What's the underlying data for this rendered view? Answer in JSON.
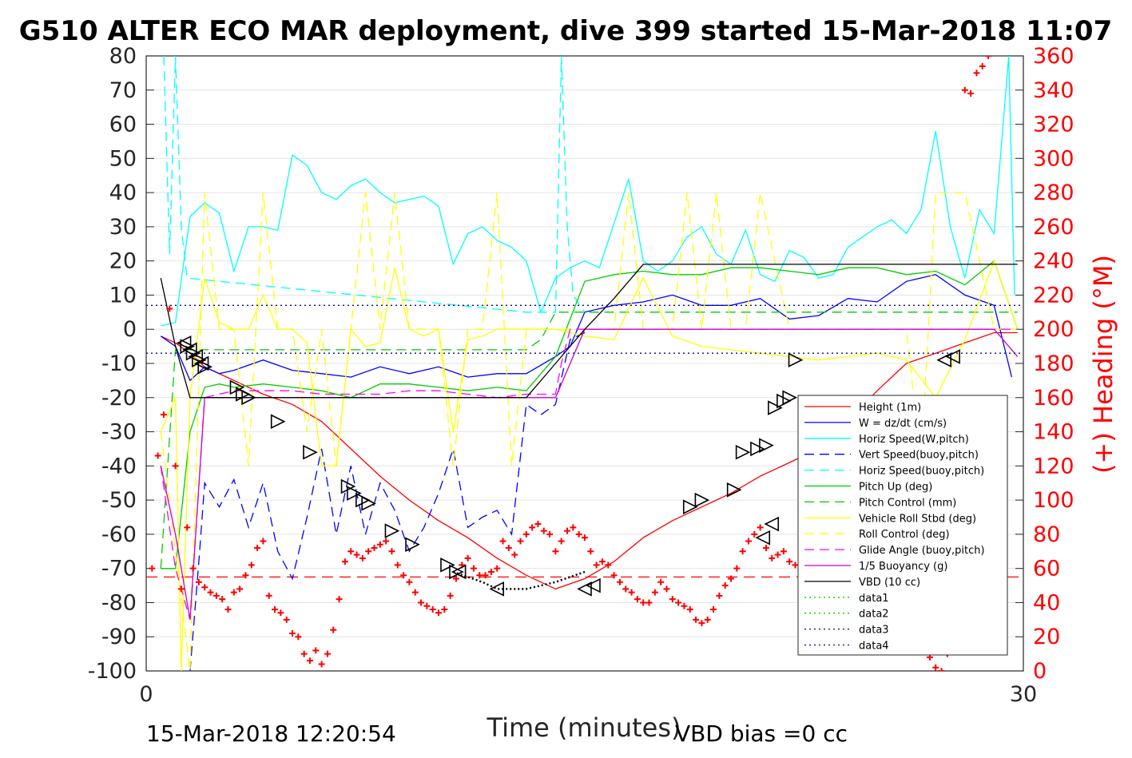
{
  "chart_data": {
    "type": "line",
    "title": "G510 ALTER ECO MAR deployment, dive 399 started 15-Mar-2018 11:07",
    "xlabel": "Time (minutes)",
    "ylabel_right": "(+) Heading (°M)",
    "xlim": [
      0,
      30
    ],
    "ylim_left": [
      -100,
      80
    ],
    "ylim_right": [
      0,
      360
    ],
    "xticks": [
      0,
      30
    ],
    "yticks_left": [
      80,
      70,
      60,
      50,
      40,
      30,
      20,
      10,
      0,
      -10,
      -20,
      -30,
      -40,
      -50,
      -60,
      -70,
      -80,
      -90,
      -100
    ],
    "yticks_right": [
      360,
      340,
      320,
      300,
      280,
      260,
      240,
      220,
      200,
      180,
      160,
      140,
      120,
      100,
      80,
      60,
      40,
      20,
      0
    ],
    "grid": true,
    "legend_position": "lower-right",
    "footer_left": "15-Mar-2018 12:20:54",
    "footer_right": "VBD bias =0 cc",
    "series": [
      {
        "name": "Height (1m)",
        "color": "#ff0000",
        "style": "solid",
        "x": [
          0.5,
          1.0,
          1.5,
          2.0,
          3.0,
          3.5,
          4.0,
          5.0,
          6.0,
          7.0,
          8.0,
          9.0,
          10.0,
          11.0,
          12.0,
          13.0,
          14.0,
          15.0,
          16.0,
          17.0,
          18.0,
          19.0,
          20.0,
          21.0,
          22.0,
          23.0,
          24.0,
          25.0,
          26.0,
          27.0,
          28.0,
          29.0,
          29.8
        ],
        "y": [
          -2,
          -4,
          -7,
          -11,
          -15,
          -17,
          -19,
          -22,
          -27,
          -35,
          -43,
          -50,
          -56,
          -61,
          -67,
          -72,
          -76,
          -73,
          -68,
          -61,
          -56,
          -52,
          -48,
          -43,
          -39,
          -35,
          -27,
          -18,
          -10,
          -7,
          -4,
          -1,
          -1
        ]
      },
      {
        "name": "W = dz/dt (cm/s)",
        "color": "#0000ff",
        "style": "solid",
        "x": [
          0.5,
          1.0,
          1.5,
          2.0,
          2.5,
          3.0,
          4.0,
          5.0,
          6.0,
          7.0,
          8.0,
          9.0,
          10.0,
          11.0,
          12.0,
          13.0,
          14.0,
          14.5,
          15.0,
          16.0,
          17.0,
          18.0,
          19.0,
          20.0,
          21.0,
          22.0,
          23.0,
          24.0,
          25.0,
          26.0,
          27.0,
          28.0,
          29.0,
          29.6
        ],
        "y": [
          -2,
          -5,
          -15,
          -11,
          -13,
          -12,
          -9,
          -12,
          -13,
          -14,
          -11,
          -13,
          -11,
          -14,
          -13,
          -13,
          -8,
          -5,
          5,
          7,
          8,
          10,
          7,
          7,
          9,
          3,
          4,
          9,
          8,
          14,
          16,
          10,
          7,
          -14
        ]
      },
      {
        "name": "Horiz Speed(W,pitch)",
        "color": "#00ffff",
        "style": "solid",
        "x": [
          0.5,
          1.0,
          1.5,
          2.0,
          2.5,
          3.0,
          3.5,
          4.0,
          4.5,
          5.0,
          5.5,
          6.0,
          6.5,
          7.0,
          7.5,
          8.0,
          8.5,
          9.0,
          9.5,
          10.0,
          10.5,
          11.0,
          11.5,
          12.0,
          12.5,
          13.0,
          13.5,
          14.0,
          14.5,
          15.0,
          15.5,
          16.0,
          16.5,
          17.0,
          17.5,
          18.0,
          18.5,
          19.0,
          19.5,
          20.0,
          20.5,
          21.0,
          21.5,
          22.0,
          22.5,
          23.0,
          23.5,
          24.0,
          24.5,
          25.0,
          25.5,
          26.0,
          26.5,
          27.0,
          27.5,
          28.0,
          28.5,
          29.0,
          29.5,
          29.7
        ],
        "y": [
          1,
          2,
          33,
          37,
          34,
          17,
          30,
          30,
          29,
          51,
          48,
          40,
          38,
          42,
          44,
          40,
          37,
          38,
          39,
          36,
          19,
          28,
          30,
          26,
          24,
          20,
          5,
          15,
          18,
          20,
          18,
          31,
          44,
          20,
          17,
          20,
          27,
          30,
          22,
          19,
          29,
          16,
          14,
          23,
          21,
          15,
          16,
          24,
          27,
          30,
          32,
          28,
          35,
          58,
          30,
          15,
          35,
          28,
          80,
          10
        ]
      },
      {
        "name": "Vert Speed(buoy,pitch)",
        "color": "#0000ff",
        "style": "dashed",
        "x": [
          1.5,
          1.8,
          2.0,
          2.5,
          3.0,
          3.5,
          4.0,
          4.5,
          5.0,
          5.5,
          6.0,
          6.5,
          7.0,
          7.5,
          8.0,
          8.5,
          9.0,
          9.5,
          10.0,
          10.5,
          11.0,
          11.5,
          12.0,
          12.5,
          13.0,
          13.5,
          14.0,
          14.5,
          15.0
        ],
        "y": [
          -100,
          -68,
          -45,
          -52,
          -44,
          -58,
          -45,
          -65,
          -73,
          -55,
          -35,
          -60,
          -40,
          -60,
          -45,
          -53,
          -65,
          -58,
          -48,
          -35,
          -58,
          -55,
          -53,
          -60,
          -22,
          -25,
          -22,
          -3,
          -1
        ]
      },
      {
        "name": "Horiz Speed(buoy,pitch)",
        "color": "#00ffff",
        "style": "dashed",
        "x": [
          0.6,
          0.8,
          1.0,
          1.2,
          1.4,
          13.0,
          14.0,
          14.2,
          14.4,
          14.6,
          15.0
        ],
        "y": [
          80,
          22,
          80,
          30,
          15,
          5,
          5,
          80,
          30,
          10,
          5
        ]
      },
      {
        "name": "Pitch Up (deg)",
        "color": "#00cc00",
        "style": "solid",
        "x": [
          0.5,
          1.0,
          1.5,
          2.0,
          2.5,
          3.0,
          4.0,
          5.0,
          6.0,
          7.0,
          8.0,
          9.0,
          10.0,
          11.0,
          12.0,
          13.0,
          14.0,
          15.0,
          16.0,
          17.0,
          18.0,
          19.0,
          20.0,
          21.0,
          22.0,
          23.0,
          24.0,
          25.0,
          26.0,
          27.0,
          28.0,
          29.0,
          29.8
        ],
        "y": [
          -70,
          -70,
          -30,
          -17,
          -16,
          -17,
          -16,
          -17,
          -18,
          -20,
          -16,
          -16,
          -17,
          -18,
          -17,
          -18,
          -8,
          14,
          16,
          17,
          16,
          16,
          18,
          18,
          17,
          16,
          18,
          18,
          16,
          17,
          13,
          20,
          0
        ]
      },
      {
        "name": "Pitch Control (mm)",
        "color": "#00cc00",
        "style": "dashed",
        "x": [
          0.5,
          1.0,
          2.0,
          13.0,
          13.5,
          14.0,
          29.8
        ],
        "y": [
          -70,
          -6,
          -6,
          -6,
          -3,
          5,
          5
        ]
      },
      {
        "name": "Vehicle Roll Stbd (deg)",
        "color": "#ffff00",
        "style": "solid",
        "x": [
          0.5,
          1.0,
          1.2,
          1.5,
          2.0,
          2.5,
          3.0,
          3.5,
          4.0,
          4.5,
          5.0,
          5.5,
          6.0,
          6.5,
          7.0,
          7.5,
          8.0,
          8.5,
          9.0,
          9.5,
          10.0,
          10.5,
          11.0,
          11.5,
          12.0,
          12.5,
          13.0,
          13.5,
          14.0,
          15.0,
          16.0,
          17.0,
          18.0,
          19.0,
          20.0,
          21.0,
          22.0,
          23.0,
          24.0,
          25.0,
          26.0,
          27.0,
          28.0,
          29.0,
          29.8
        ],
        "y": [
          -30,
          -20,
          -100,
          -20,
          15,
          2,
          0,
          0,
          10,
          0,
          0,
          -4,
          -40,
          -40,
          0,
          -5,
          -4,
          18,
          0,
          -2,
          0,
          -30,
          -3,
          -2,
          0,
          0,
          0,
          0,
          0,
          -2,
          -3,
          15,
          -2,
          -5,
          -6,
          -7,
          -8,
          -9,
          -8,
          -7,
          -9,
          -20,
          -3,
          20,
          0
        ]
      },
      {
        "name": "Roll Control (deg)",
        "color": "#ffff00",
        "style": "dashed",
        "x": [
          0.5,
          1.5,
          2.0,
          2.5,
          3.0,
          3.5,
          4.0,
          4.5,
          5.0,
          5.5,
          6.0,
          6.5,
          7.0,
          7.5,
          8.0,
          8.5,
          9.0,
          9.5,
          10.0,
          10.5,
          11.0,
          11.5,
          12.0,
          12.5,
          13.0,
          13.5,
          14.0,
          15.0,
          16.0,
          16.5,
          17.0,
          17.5,
          18.0,
          18.5,
          19.0,
          19.5,
          20.0,
          20.5,
          21.0,
          22.0,
          23.0,
          24.0,
          25.0,
          26.0,
          26.5,
          27.0,
          28.0,
          29.0,
          29.8
        ],
        "y": [
          -30,
          -100,
          40,
          0,
          0,
          -40,
          40,
          0,
          0,
          -30,
          0,
          -40,
          0,
          40,
          0,
          40,
          0,
          0,
          0,
          -40,
          0,
          0,
          40,
          -40,
          0,
          0,
          0,
          0,
          0,
          40,
          0,
          0,
          0,
          40,
          0,
          40,
          0,
          0,
          40,
          0,
          0,
          0,
          0,
          0,
          -40,
          40,
          40,
          0,
          0
        ]
      },
      {
        "name": "Glide Angle (buoy,pitch)",
        "color": "#ff00ff",
        "style": "dashed",
        "x": [
          0.5,
          1.0,
          1.5,
          2.0,
          3.0,
          4.0,
          5.0,
          6.0,
          7.0,
          8.0,
          9.0,
          10.0,
          11.0,
          12.0,
          13.0,
          14.0,
          14.2,
          14.5,
          15.0,
          20.0,
          25.0,
          29.8
        ],
        "y": [
          -40,
          -70,
          -85,
          -20,
          -18,
          -18,
          -18,
          -19,
          -19,
          -19,
          -18,
          -18,
          -19,
          -20,
          -19,
          -19,
          -10,
          0,
          0,
          0,
          0,
          0
        ]
      },
      {
        "name": "1/5 Buoyancy (g)",
        "color": "#cc00cc",
        "style": "solid",
        "x": [
          0.5,
          1.0,
          1.5,
          2.0,
          2.5,
          3.0,
          14.0,
          14.5,
          15.0,
          29.0,
          29.8
        ],
        "y": [
          -40,
          -60,
          -85,
          -20,
          -20,
          -20,
          -20,
          -10,
          0,
          0,
          -8
        ]
      },
      {
        "name": "VBD (10 cc)",
        "color": "#000000",
        "style": "solid",
        "x": [
          0.5,
          1.0,
          1.5,
          2.0,
          3.0,
          5.0,
          8.0,
          10.0,
          12.0,
          13.0,
          14.0,
          15.0,
          16.0,
          17.0,
          18.0,
          19.0,
          20.0,
          22.0,
          24.0,
          26.0,
          28.0,
          29.8
        ],
        "y": [
          15,
          -5,
          -20,
          -20,
          -20,
          -20,
          -20,
          -20,
          -20,
          -20,
          -10,
          0,
          9,
          19,
          19,
          19,
          19,
          19,
          19,
          19,
          19,
          19
        ]
      },
      {
        "name": "data1",
        "color": "#00cc00",
        "style": "dotted",
        "x": [],
        "y": []
      },
      {
        "name": "data2",
        "color": "#00cc00",
        "style": "dotted",
        "x": [],
        "y": []
      },
      {
        "name": "data3",
        "color": "#0000aa",
        "style": "dotted",
        "x": [
          0,
          30
        ],
        "y": [
          7,
          7
        ]
      },
      {
        "name": "data4",
        "color": "#0000aa",
        "style": "dotted",
        "x": [
          0,
          30
        ],
        "y": [
          -7,
          -7
        ]
      }
    ],
    "triangles_right": {
      "color": "#000000",
      "x": [
        1.4,
        1.6,
        1.8,
        2.0,
        3.1,
        3.3,
        3.5,
        4.5,
        5.6,
        6.9,
        7.1,
        7.4,
        7.6,
        8.4,
        9.1,
        10.3,
        10.6,
        18.6,
        19.0,
        20.1,
        20.4,
        20.9,
        21.2,
        21.5,
        21.8,
        22.0,
        22.2
      ],
      "y": [
        -5,
        -7,
        -9,
        -11,
        -17,
        -19,
        -20,
        -27,
        -36,
        -46,
        -48,
        -50,
        -51,
        -59,
        -63,
        -69,
        -71,
        -52,
        -50,
        -47,
        -36,
        -35,
        -34,
        -23,
        -21,
        -20,
        -9
      ]
    },
    "triangles_left": {
      "color": "#000000",
      "x": [
        1.3,
        1.5,
        1.7,
        1.9,
        10.7,
        12.0,
        15.0,
        15.3,
        21.1,
        21.4,
        22.6,
        22.9,
        27.3,
        27.6
      ],
      "y": [
        -4,
        -6,
        -8,
        -10,
        -71,
        -76,
        -76,
        -75,
        -61,
        -57,
        -36,
        -33,
        -9,
        -8
      ]
    },
    "heading_points": {
      "color": "#ff0000",
      "axis": "right",
      "x": [
        0.2,
        0.4,
        0.6,
        0.8,
        1.0,
        1.2,
        1.4,
        1.6,
        1.8,
        2.0,
        2.2,
        2.4,
        2.6,
        2.8,
        3.0,
        3.2,
        3.4,
        3.6,
        3.8,
        4.0,
        4.2,
        4.4,
        4.6,
        4.8,
        5.0,
        5.2,
        5.4,
        5.6,
        5.8,
        6.0,
        6.2,
        6.4,
        6.6,
        6.8,
        7.0,
        7.2,
        7.4,
        7.6,
        7.8,
        8.0,
        8.2,
        8.4,
        8.6,
        8.8,
        9.0,
        9.2,
        9.4,
        9.6,
        9.8,
        10.0,
        10.2,
        10.4,
        10.6,
        10.8,
        11.0,
        11.2,
        11.4,
        11.6,
        11.8,
        12.0,
        12.2,
        12.4,
        12.6,
        12.8,
        13.0,
        13.2,
        13.4,
        13.6,
        13.8,
        14.0,
        14.2,
        14.4,
        14.6,
        14.8,
        15.0,
        15.2,
        15.4,
        15.6,
        15.8,
        16.0,
        16.2,
        16.4,
        16.6,
        16.8,
        17.0,
        17.2,
        17.4,
        17.6,
        17.8,
        18.0,
        18.2,
        18.4,
        18.6,
        18.8,
        19.0,
        19.2,
        19.4,
        19.6,
        19.8,
        20.0,
        20.2,
        20.4,
        20.6,
        20.8,
        21.0,
        21.2,
        21.4,
        21.6,
        21.8,
        22.0,
        22.2,
        22.4,
        22.6,
        22.8,
        23.0,
        23.2,
        23.4,
        23.6,
        23.8,
        24.0,
        24.2,
        24.4,
        24.6,
        24.8,
        25.0,
        25.2,
        25.4,
        25.6,
        25.8,
        26.0,
        26.2,
        26.4,
        26.6,
        26.8,
        27.0,
        27.2,
        27.4,
        27.6,
        27.8,
        28.0,
        28.2,
        28.4,
        28.6,
        28.8
      ],
      "y": [
        60,
        126,
        150,
        212,
        120,
        48,
        84,
        60,
        52,
        49,
        46,
        44,
        42,
        36,
        46,
        48,
        56,
        62,
        72,
        76,
        44,
        36,
        34,
        30,
        22,
        20,
        10,
        6,
        12,
        4,
        10,
        24,
        42,
        64,
        70,
        68,
        66,
        70,
        72,
        74,
        76,
        70,
        62,
        56,
        52,
        46,
        40,
        38,
        36,
        34,
        36,
        44,
        54,
        62,
        66,
        60,
        56,
        56,
        58,
        60,
        76,
        72,
        68,
        76,
        80,
        84,
        86,
        82,
        80,
        70,
        76,
        82,
        84,
        80,
        78,
        70,
        62,
        64,
        62,
        56,
        52,
        48,
        46,
        42,
        40,
        40,
        46,
        52,
        48,
        42,
        40,
        38,
        36,
        30,
        28,
        30,
        36,
        44,
        50,
        54,
        60,
        70,
        76,
        80,
        84,
        72,
        66,
        68,
        70,
        64,
        62,
        46,
        42,
        44,
        48,
        50,
        44,
        40,
        30,
        36,
        52,
        60,
        66,
        68,
        70,
        70,
        54,
        46,
        36,
        20,
        16,
        26,
        18,
        8,
        2,
        0,
        10,
        16,
        20,
        340,
        338,
        350,
        354,
        360
      ]
    },
    "reference_line": {
      "color": "#ff0000",
      "style": "dashed",
      "axis": "right",
      "y": 55
    }
  }
}
